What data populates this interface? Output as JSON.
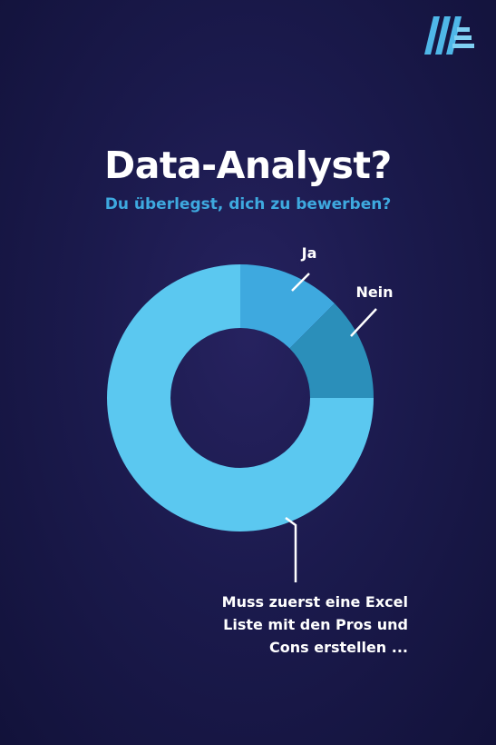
{
  "title": "Data-Analyst?",
  "subtitle": "Du überlegst, dich zu bewerben?",
  "logo": "aldi-logo-icon",
  "colors": {
    "background": "#1b1a4d",
    "title": "#ffffff",
    "subtitle": "#3ea9df",
    "ja": "#3ea9df",
    "nein": "#2b8fba",
    "muss": "#5bc8f0"
  },
  "chart_data": {
    "type": "pie",
    "donut": true,
    "categories": [
      "Ja",
      "Nein",
      "Muss zuerst eine Excel Liste mit den Pros und Cons erstellen ..."
    ],
    "values": [
      12.5,
      12.5,
      75
    ],
    "label_lines": [
      "Muss zuerst eine Excel",
      "Liste mit den Pros und",
      "Cons erstellen ..."
    ]
  }
}
